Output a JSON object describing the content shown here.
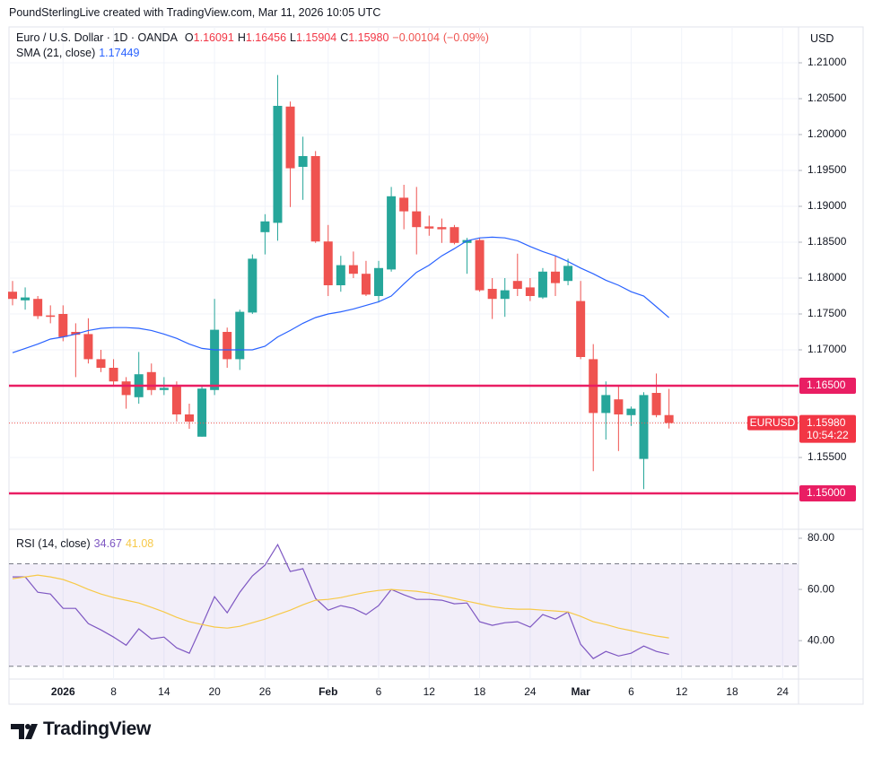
{
  "attribution": "PoundSterlingLive created with TradingView.com, Mar 11, 2026 10:05 UTC",
  "logo": "TradingView",
  "chart_data": [
    {
      "type": "candlestick",
      "title": "Euro / U.S. Dollar · 1D · OANDA",
      "legend_values": [
        {
          "key": "O",
          "value": 1.16091
        },
        {
          "key": "H",
          "value": 1.16456
        },
        {
          "key": "L",
          "value": 1.15904
        },
        {
          "key": "C",
          "value": 1.1598,
          "label": "1.15980"
        }
      ],
      "change": {
        "value": -0.00104,
        "label": "−0.00104"
      },
      "change_pct": {
        "value": -0.09,
        "label": "(−0.09%)"
      },
      "currency": "USD",
      "symbol": "EURUSD",
      "countdown": "10:54:22",
      "last_price": {
        "value": 1.1598,
        "label": "1.15980"
      },
      "up_color": "#26a69a",
      "down_color": "#ef5350",
      "categories": [
        null,
        null,
        null,
        null,
        "2026",
        null,
        null,
        null,
        "8",
        null,
        null,
        null,
        "14",
        null,
        null,
        null,
        "20",
        null,
        null,
        null,
        "26",
        null,
        null,
        null,
        null,
        "Feb",
        null,
        null,
        null,
        "6",
        null,
        null,
        null,
        "12",
        null,
        null,
        null,
        "18",
        null,
        null,
        null,
        "24",
        null,
        null,
        null,
        "Mar",
        null,
        null,
        null,
        "6",
        null,
        null,
        null,
        "12",
        null,
        null,
        null,
        "18",
        null,
        null,
        null,
        "24"
      ],
      "open": [
        1.1781,
        1.1769,
        1.1771,
        1.1748,
        1.175,
        1.1725,
        1.1722,
        1.1687,
        1.1675,
        1.1656,
        1.1634,
        1.1669,
        1.1644,
        1.165,
        1.161,
        1.1579,
        1.1644,
        1.1725,
        1.1687,
        1.1752,
        1.1864,
        1.1877,
        1.2039,
        1.1955,
        1.197,
        1.1851,
        1.179,
        1.1818,
        1.1806,
        1.1775,
        1.1812,
        1.1912,
        1.1893,
        1.1872,
        1.1871,
        1.1871,
        1.1849,
        1.1853,
        1.1785,
        1.1771,
        1.1796,
        1.1787,
        1.1773,
        1.1809,
        1.1796,
        1.1768,
        1.1687,
        1.1612,
        1.1631,
        1.1609,
        1.1548,
        1.164,
        1.16091,
        null,
        null,
        null,
        null,
        null,
        null,
        null,
        null,
        null
      ],
      "high": [
        1.1796,
        1.1787,
        1.1775,
        1.1762,
        1.1762,
        1.1737,
        1.1744,
        1.17,
        1.1687,
        1.1662,
        1.1697,
        1.1681,
        1.1662,
        1.1656,
        1.1625,
        1.165,
        1.1771,
        1.1731,
        1.1756,
        1.1833,
        1.1889,
        1.2083,
        1.2046,
        1.1997,
        1.1977,
        1.1874,
        1.1831,
        1.1837,
        1.1824,
        1.1824,
        1.1927,
        1.193,
        1.1927,
        1.1887,
        1.1883,
        1.1874,
        1.1856,
        1.1856,
        1.18,
        1.18,
        1.1834,
        1.18,
        1.1814,
        1.1831,
        1.1827,
        1.1796,
        1.1708,
        1.1656,
        1.165,
        1.1621,
        1.1641,
        1.1667,
        1.16456,
        null,
        null,
        null,
        null,
        null,
        null,
        null,
        null,
        null
      ],
      "low": [
        1.1762,
        1.1756,
        1.1743,
        1.1737,
        1.1712,
        1.1662,
        1.1681,
        1.1669,
        1.165,
        1.1618,
        1.1625,
        1.1637,
        1.1637,
        1.16,
        1.159,
        1.1579,
        1.1637,
        1.1675,
        1.1672,
        1.175,
        1.1833,
        1.1852,
        1.1899,
        1.1909,
        1.1849,
        1.1775,
        1.1781,
        1.18,
        1.1775,
        1.1766,
        1.1809,
        1.1868,
        1.1833,
        1.1859,
        1.1849,
        1.1847,
        1.1806,
        1.1781,
        1.1743,
        1.1746,
        1.1775,
        1.1768,
        1.1771,
        1.1775,
        1.179,
        1.1687,
        1.1531,
        1.1575,
        1.1559,
        1.1594,
        1.1506,
        1.1606,
        1.15904,
        null,
        null,
        null,
        null,
        null,
        null,
        null,
        null,
        null
      ],
      "close": [
        1.1771,
        1.1773,
        1.1747,
        1.1746,
        1.1718,
        1.1721,
        1.1687,
        1.1675,
        1.1656,
        1.1637,
        1.1666,
        1.1644,
        1.1647,
        1.161,
        1.16,
        1.1646,
        1.1728,
        1.1687,
        1.1753,
        1.1827,
        1.1879,
        1.204,
        1.1953,
        1.197,
        1.1851,
        1.179,
        1.1818,
        1.1806,
        1.1777,
        1.1814,
        1.1914,
        1.1893,
        1.1871,
        1.1869,
        1.1868,
        1.1849,
        1.1853,
        1.1783,
        1.1771,
        1.1783,
        1.1785,
        1.1775,
        1.1809,
        1.1793,
        1.1817,
        1.169,
        1.1612,
        1.1637,
        1.161,
        1.1618,
        1.1637,
        1.1609,
        1.1598,
        null,
        null,
        null,
        null,
        null,
        null,
        null,
        null,
        null
      ],
      "series": [
        {
          "name": "SMA (21, close)",
          "color": "#2962ff",
          "values": [
            1.1696,
            1.1702,
            1.1708,
            1.1715,
            1.1718,
            1.1722,
            1.1727,
            1.173,
            1.1731,
            1.1731,
            1.173,
            1.1727,
            1.1722,
            1.1716,
            1.1708,
            1.1702,
            1.17,
            1.17,
            1.17,
            1.17,
            1.1705,
            1.1718,
            1.1727,
            1.1737,
            1.1745,
            1.175,
            1.1753,
            1.1757,
            1.1762,
            1.1767,
            1.1775,
            1.1792,
            1.1808,
            1.1818,
            1.1831,
            1.1841,
            1.1852,
            1.1856,
            1.1857,
            1.1856,
            1.1852,
            1.1844,
            1.1837,
            1.1831,
            1.1823,
            1.1814,
            1.1806,
            1.1797,
            1.179,
            1.1781,
            1.1775,
            1.176,
            1.17449,
            null,
            null,
            null,
            null,
            null,
            null,
            null,
            null,
            null
          ]
        }
      ],
      "hlines": [
        {
          "value": 1.165,
          "label": "1.16500"
        },
        {
          "value": 1.15,
          "label": "1.15000"
        }
      ],
      "hline_color": "#e91e63",
      "ylim": [
        1.145,
        1.215
      ],
      "yticks": [
        {
          "value": 1.21,
          "label": "1.21000"
        },
        {
          "value": 1.205,
          "label": "1.20500"
        },
        {
          "value": 1.2,
          "label": "1.20000"
        },
        {
          "value": 1.195,
          "label": "1.19500"
        },
        {
          "value": 1.19,
          "label": "1.19000"
        },
        {
          "value": 1.185,
          "label": "1.18500"
        },
        {
          "value": 1.18,
          "label": "1.18000"
        },
        {
          "value": 1.175,
          "label": "1.17500"
        },
        {
          "value": 1.17,
          "label": "1.17000"
        },
        {
          "value": 1.165,
          "label": "1.16500"
        },
        {
          "value": 1.16,
          "label": "1.16000"
        },
        {
          "value": 1.155,
          "label": "1.15500"
        }
      ],
      "grid": true
    },
    {
      "type": "line",
      "title": "RSI (14, close)",
      "series": [
        {
          "color": "#7e57c2",
          "values": [
            64.9,
            64.9,
            58.9,
            58.2,
            52.6,
            52.6,
            46.7,
            44.2,
            41.4,
            38.2,
            44.6,
            40.7,
            41.4,
            37.2,
            35.1,
            46.0,
            57.2,
            50.9,
            58.9,
            65.3,
            69.5,
            77.5,
            67.0,
            68.1,
            56.5,
            51.9,
            53.7,
            52.6,
            50.2,
            53.7,
            60.0,
            57.9,
            56.1,
            56.1,
            55.8,
            54.4,
            54.7,
            47.4,
            46.0,
            47.0,
            47.4,
            45.3,
            50.2,
            48.4,
            51.2,
            38.6,
            33.0,
            35.8,
            34.0,
            35.1,
            37.9,
            35.8,
            34.67,
            null,
            null,
            null,
            null,
            null,
            null,
            null,
            null,
            null
          ]
        },
        {
          "color": "#f7c948",
          "values": [
            64.2,
            64.9,
            65.6,
            64.9,
            63.9,
            62.1,
            60.0,
            58.2,
            56.8,
            55.8,
            54.7,
            53.0,
            51.2,
            49.1,
            47.4,
            46.3,
            45.3,
            44.9,
            45.6,
            47.0,
            48.4,
            50.2,
            51.9,
            54.0,
            55.8,
            56.1,
            56.8,
            57.9,
            58.9,
            59.6,
            60.0,
            59.6,
            59.3,
            58.6,
            57.5,
            56.5,
            55.4,
            54.4,
            53.3,
            52.6,
            52.3,
            52.3,
            51.9,
            51.6,
            51.2,
            49.5,
            47.4,
            46.3,
            44.9,
            43.9,
            42.8,
            41.8,
            41.08,
            null,
            null,
            null,
            null,
            null,
            null,
            null,
            null,
            null
          ]
        }
      ],
      "band": [
        30,
        70
      ],
      "band_color": "#7e57c2",
      "ylim": [
        25,
        83.5
      ],
      "yticks": [
        {
          "value": 80,
          "label": "80.00"
        },
        {
          "value": 60,
          "label": "60.00"
        },
        {
          "value": 40,
          "label": "40.00"
        }
      ]
    }
  ]
}
